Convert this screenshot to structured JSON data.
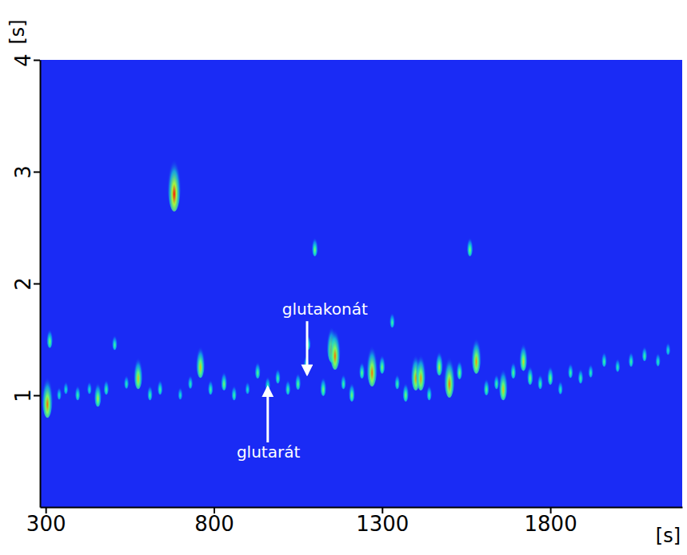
{
  "chart_data": {
    "type": "contour",
    "color": "#1a2bf5",
    "x_label": "[s]",
    "y_label": "[s]",
    "xlim": [
      283,
      2192
    ],
    "xticks": [
      300,
      800,
      1300,
      1800
    ],
    "ylim": [
      0,
      4
    ],
    "yticks": [
      1,
      2,
      3,
      4
    ],
    "x": [
      305,
      312,
      340,
      360,
      395,
      430,
      455,
      480,
      505,
      540,
      575,
      610,
      640,
      682,
      700,
      730,
      760,
      790,
      830,
      860,
      900,
      930,
      960,
      990,
      1020,
      1050,
      1075,
      1080,
      1100,
      1125,
      1150,
      1160,
      1185,
      1210,
      1240,
      1270,
      1300,
      1330,
      1345,
      1370,
      1400,
      1415,
      1440,
      1470,
      1500,
      1530,
      1561,
      1580,
      1610,
      1640,
      1660,
      1690,
      1720,
      1740,
      1770,
      1800,
      1830,
      1860,
      1890,
      1920,
      1960,
      2000,
      2040,
      2080,
      2120,
      2150
    ],
    "values": [
      0.92,
      1.48,
      1.0,
      1.05,
      1.0,
      1.05,
      0.97,
      1.05,
      1.45,
      1.1,
      1.15,
      1.0,
      1.05,
      2.8,
      1.0,
      1.1,
      1.25,
      1.05,
      1.1,
      1.0,
      1.05,
      1.2,
      1.08,
      1.15,
      1.05,
      1.1,
      1.27,
      1.45,
      2.3,
      1.05,
      1.4,
      1.35,
      1.1,
      1.0,
      1.2,
      1.2,
      1.25,
      1.65,
      1.1,
      1.0,
      1.15,
      1.15,
      1.0,
      1.25,
      1.1,
      1.2,
      2.3,
      1.3,
      1.05,
      1.1,
      1.05,
      1.2,
      1.3,
      1.15,
      1.1,
      1.15,
      1.05,
      1.2,
      1.15,
      1.2,
      1.3,
      1.25,
      1.3,
      1.35,
      1.3,
      1.4
    ],
    "intensity": [
      0.9,
      0.6,
      0.4,
      0.4,
      0.5,
      0.4,
      0.7,
      0.5,
      0.5,
      0.45,
      0.8,
      0.5,
      0.5,
      1.0,
      0.4,
      0.45,
      0.8,
      0.5,
      0.6,
      0.5,
      0.4,
      0.55,
      0.5,
      0.5,
      0.5,
      0.55,
      0.5,
      0.5,
      0.6,
      0.6,
      0.85,
      0.9,
      0.5,
      0.6,
      0.55,
      0.9,
      0.6,
      0.5,
      0.5,
      0.6,
      0.85,
      0.85,
      0.5,
      0.7,
      0.9,
      0.6,
      0.6,
      0.85,
      0.55,
      0.5,
      0.8,
      0.55,
      0.75,
      0.6,
      0.5,
      0.6,
      0.45,
      0.5,
      0.5,
      0.45,
      0.5,
      0.45,
      0.5,
      0.5,
      0.45,
      0.4
    ],
    "annotations": [
      {
        "text": "glutarát",
        "x": 960,
        "y": 1.07,
        "text_x": 962,
        "text_y": 0.55
      },
      {
        "text": "glutakonát",
        "x": 1077,
        "y": 1.19,
        "text_x": 1130,
        "text_y": 1.72
      }
    ]
  }
}
